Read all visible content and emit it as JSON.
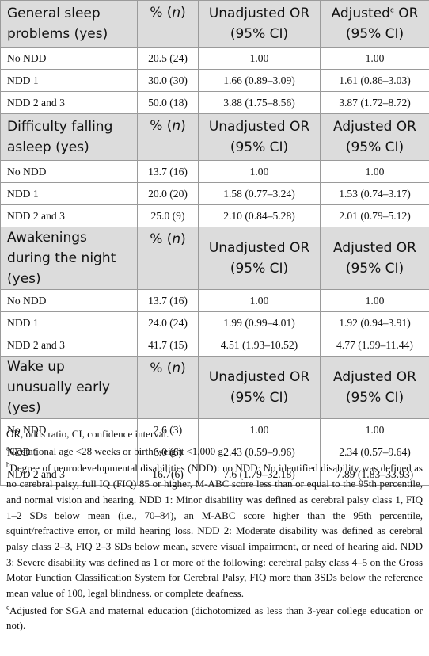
{
  "sections": [
    {
      "header": {
        "c1": "General sleep problems (yes)",
        "c2_pre": "% (",
        "c2_n": "n",
        "c2_post": ")",
        "c3": "Unadjusted OR (95% CI)",
        "c4": "Adjusted",
        "c4_sup": "c",
        "c4_rest": "OR (95% CI)"
      },
      "rows": [
        {
          "group": "No NDD",
          "pct": "20.5 (24)",
          "unadj": "1.00",
          "adj": "1.00"
        },
        {
          "group": "NDD 1",
          "pct": "30.0 (30)",
          "unadj": "1.66 (0.89–3.09)",
          "adj": "1.61 (0.86–3.03)"
        },
        {
          "group": "NDD 2 and 3",
          "pct": "50.0 (18)",
          "unadj": "3.88 (1.75–8.56)",
          "adj": "3.87 (1.72–8.72)"
        }
      ]
    },
    {
      "header": {
        "c1": "Difficulty falling asleep (yes)",
        "c2_pre": "% (",
        "c2_n": "n",
        "c2_post": ")",
        "c3": "Unadjusted OR (95% CI)",
        "c4": "Adjusted OR (95% CI)"
      },
      "rows": [
        {
          "group": "No NDD",
          "pct": "13.7 (16)",
          "unadj": "1.00",
          "adj": "1.00"
        },
        {
          "group": "NDD 1",
          "pct": "20.0 (20)",
          "unadj": "1.58 (0.77–3.24)",
          "adj": "1.53 (0.74–3.17)"
        },
        {
          "group": "NDD 2 and 3",
          "pct": "25.0 (9)",
          "unadj": "2.10 (0.84–5.28)",
          "adj": "2.01 (0.79–5.12)"
        }
      ]
    },
    {
      "header": {
        "c1": "Awakenings during the night (yes)",
        "c2_pre": "% (",
        "c2_n": "n",
        "c2_post": ")",
        "c3": "Unadjusted OR (95% CI)",
        "c4": "Adjusted OR (95% CI)"
      },
      "rows": [
        {
          "group": "No NDD",
          "pct": "13.7 (16)",
          "unadj": "1.00",
          "adj": "1.00"
        },
        {
          "group": "NDD 1",
          "pct": "24.0 (24)",
          "unadj": "1.99 (0.99–4.01)",
          "adj": "1.92 (0.94–3.91)"
        },
        {
          "group": "NDD 2 and 3",
          "pct": "41.7 (15)",
          "unadj": "4.51 (1.93–10.52)",
          "adj": "4.77 (1.99–11.44)"
        }
      ]
    },
    {
      "header": {
        "c1": "Wake up unusually early (yes)",
        "c2_pre": "% (",
        "c2_n": "n",
        "c2_post": ")",
        "c3": "Unadjusted OR (95% CI)",
        "c4": "Adjusted OR (95% CI)"
      },
      "rows": [
        {
          "group": "No NDD",
          "pct": "2.6 (3)",
          "unadj": "1.00",
          "adj": "1.00"
        },
        {
          "group": "NDD 1",
          "pct": "6.0 (6)",
          "unadj": "2.43 (0.59–9.96)",
          "adj": "2.34 (0.57–9.64)"
        },
        {
          "group": "NDD 2 and 3",
          "pct": "16.7(6)",
          "unadj": "7.6 (1.79–32.18)",
          "adj": "7.89 (1.83–33.93)"
        }
      ]
    }
  ],
  "notes": {
    "abbrev": "OR, odds ratio, CI, confidence interval.",
    "a_sup": "a",
    "a_text": "Gestational age <28 weeks or birth weight <1,000 g.",
    "b_sup": "b",
    "b_text": "Degree of neurodevelopmental disabilities (NDD): no NDD: No identified disability was defined as no cerebral palsy, full IQ (FIQ) 85 or higher, M-ABC score less than or equal to the 95th percentile, and normal vision and hearing. NDD 1: Minor disability was defined as cerebral palsy class 1, FIQ 1–2 SDs below mean (i.e., 70–84), an M-ABC score higher than the 95th percentile, squint/refractive error, or mild hearing loss. NDD 2: Moderate disability was defined as cerebral palsy class 2–3, FIQ 2–3 SDs below mean, severe visual impairment, or need of hearing aid. NDD 3: Severe disability was defined as 1 or more of the following: cerebral palsy class 4–5 on the Gross Motor Function Classification System for Cerebral Palsy, FIQ more than 3SDs below the reference mean value of 100, legal blindness, or complete deafness.",
    "c_sup": "c",
    "c_text": "Adjusted for SGA and maternal education (dichotomized as less than 3-year college education or not)."
  }
}
